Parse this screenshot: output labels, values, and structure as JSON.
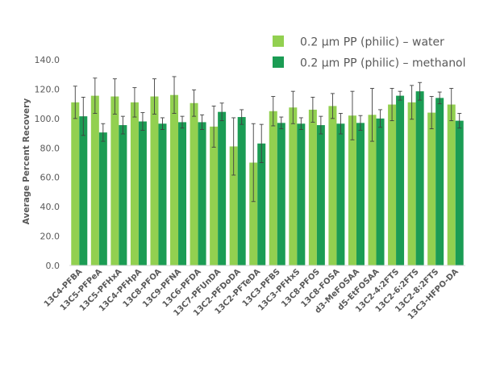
{
  "chart_data": {
    "type": "bar",
    "title": "",
    "xlabel": "",
    "ylabel": "Average Percent Recovery",
    "ylim": [
      0,
      140
    ],
    "yticks": [
      "0.0",
      "20.0",
      "40.0",
      "60.0",
      "80.0",
      "100.0",
      "120.0",
      "140.0"
    ],
    "grid": false,
    "legend_position": "top-right",
    "categories": [
      "13C4-PFBA",
      "13C5-PFPeA",
      "13C5-PFHxA",
      "13C4-PFHpA",
      "13C8-PFOA",
      "13C9-PFNA",
      "13C6-PFDA",
      "13C7-PFUnDA",
      "13C2-PFDoDA",
      "13C2-PFTeDA",
      "13C3-PFBS",
      "13C3-PFHxS",
      "13C8-PFOS",
      "13C8-FOSA",
      "d3-MeFOSAA",
      "d5-EtFOSAA",
      "13C2-4:2FTS",
      "13C2-6:2FTS",
      "13C2-8:2FTS",
      "13C3-HFPO-DA"
    ],
    "series": [
      {
        "name": "0.2 µm PP (philic) – water",
        "color": "#92d050",
        "values": [
          111,
          115.5,
          115,
          111,
          115,
          116,
          110.5,
          94.5,
          81,
          70,
          105,
          107.5,
          106,
          108.5,
          102,
          102.5,
          109.5,
          111,
          104,
          109.5
        ],
        "error": [
          11,
          12,
          12,
          10,
          12,
          12.5,
          9,
          14,
          19.5,
          26.5,
          10,
          11,
          8.5,
          8.5,
          16.5,
          18,
          11,
          11.5,
          11,
          11
        ]
      },
      {
        "name": "0.2 µm PP (philic) – methanol",
        "color": "#1b9c54",
        "values": [
          101.5,
          90.5,
          95.5,
          98,
          96.5,
          97.5,
          97.5,
          104.5,
          101,
          83,
          97,
          96.5,
          95.5,
          96.5,
          97,
          100,
          115.5,
          118.5,
          114,
          98.5
        ],
        "error": [
          13,
          6,
          6,
          6,
          4,
          4,
          5,
          6,
          5,
          13,
          4,
          4,
          6,
          7,
          5,
          6,
          3,
          6,
          4,
          5
        ]
      }
    ]
  }
}
